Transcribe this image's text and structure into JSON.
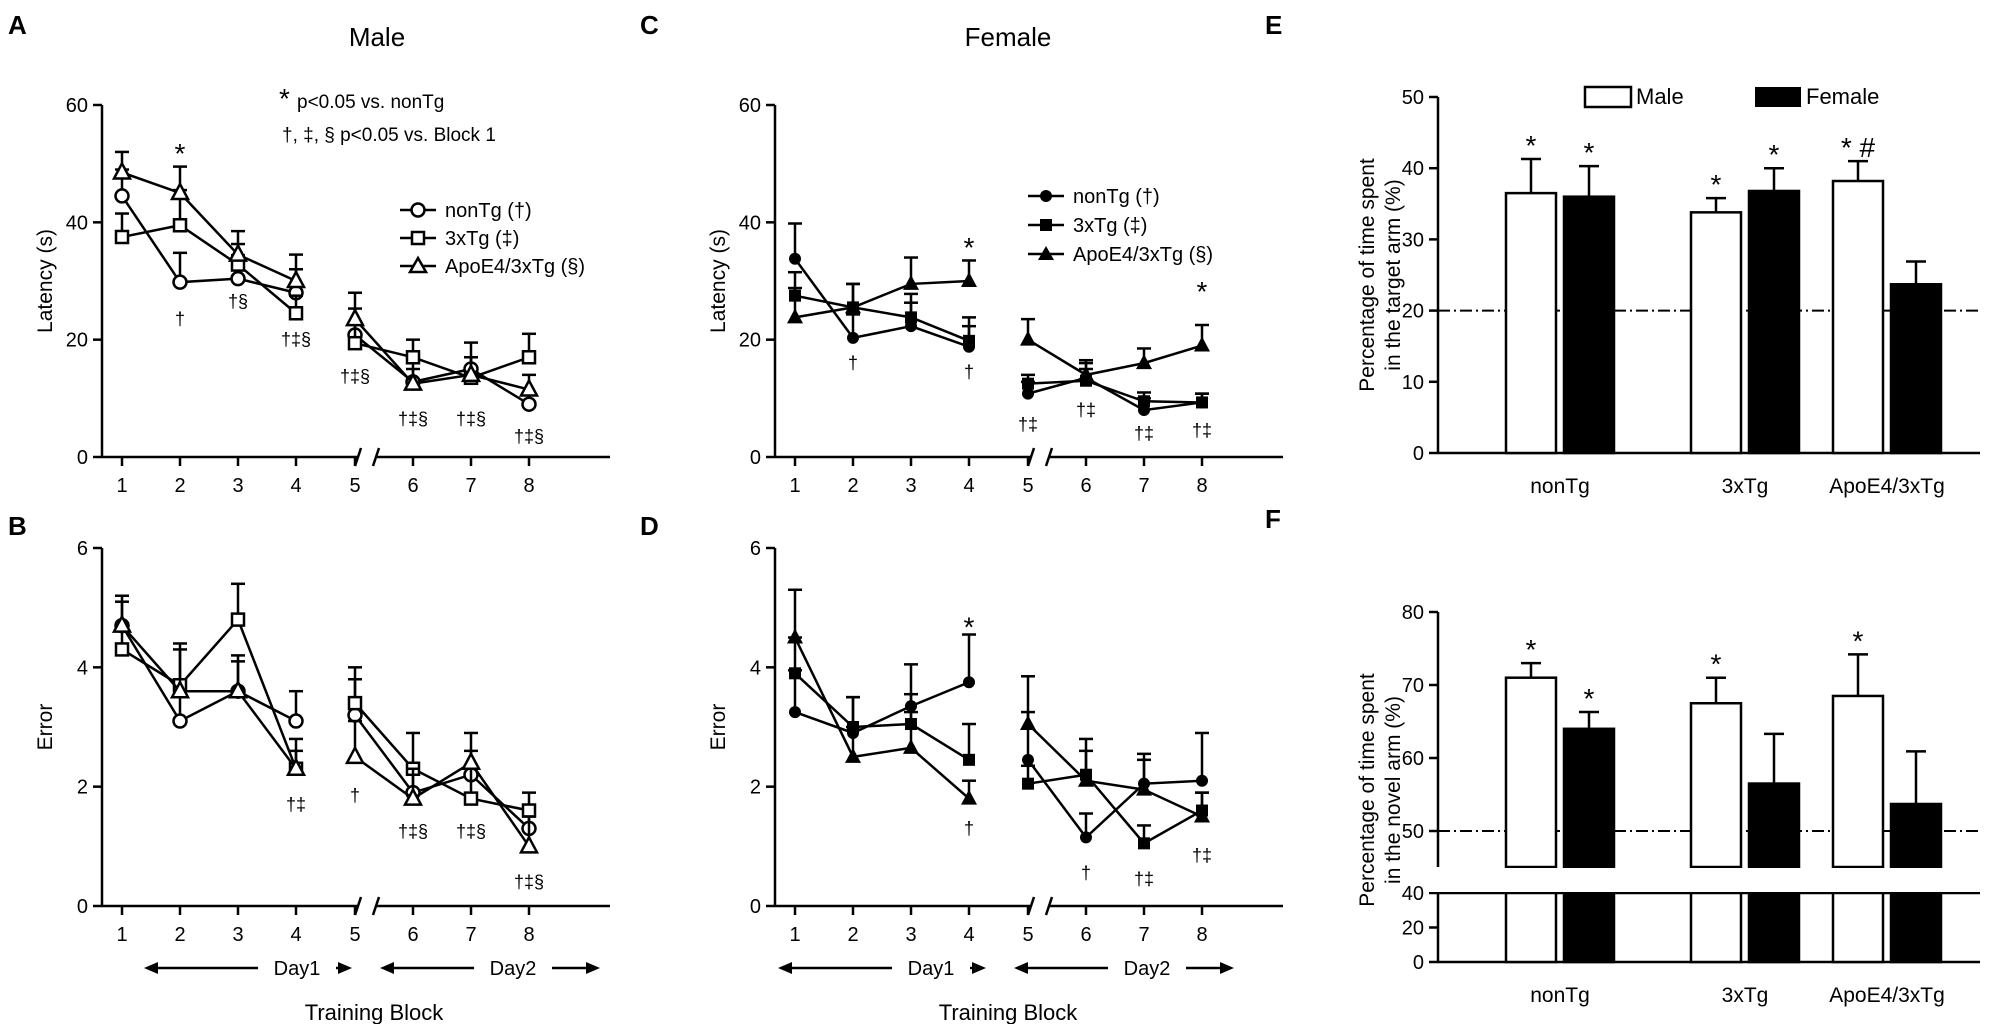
{
  "figure": {
    "x_label": "Training Block",
    "day1_label": "Day1",
    "day2_label": "Day2",
    "symbol_legend": [
      "nonTg (†)",
      "3xTg (‡)",
      "ApoE4/3xTg (§)"
    ],
    "significance_note": [
      "p<0.05 vs. nonTg",
      "†, ‡, § p<0.05 vs. Block 1"
    ]
  },
  "chart_data": [
    {
      "id": "A",
      "letter": "A",
      "title": "Male",
      "type": "line",
      "ylabel": "Latency (s)",
      "ylim": [
        0,
        60
      ],
      "yticks": [
        0,
        20,
        40,
        60
      ],
      "x": [
        1,
        2,
        3,
        4,
        5,
        6,
        7,
        8
      ],
      "break_after": 4,
      "filled": false,
      "series": [
        {
          "name": "nonTg (†)",
          "marker": "circle",
          "values": [
            44.5,
            29.8,
            30.4,
            28.0,
            20.8,
            12.8,
            15.0,
            9.0
          ],
          "errors": [
            4.5,
            5.0,
            4.0,
            4.0,
            4.5,
            3.5,
            4.5,
            2.0
          ]
        },
        {
          "name": "3xTg (‡)",
          "marker": "square",
          "values": [
            37.5,
            39.5,
            32.8,
            24.5,
            19.4,
            17.0,
            13.5,
            17.0
          ],
          "errors": [
            4.0,
            6.0,
            3.5,
            3.0,
            3.5,
            3.0,
            3.5,
            4.0
          ]
        },
        {
          "name": "ApoE4/3xTg (§)",
          "marker": "triangle",
          "values": [
            48.5,
            45.0,
            34.5,
            30.0,
            23.5,
            12.5,
            14.0,
            11.5
          ],
          "errors": [
            3.5,
            4.5,
            4.0,
            4.5,
            4.5,
            2.5,
            3.0,
            2.5
          ]
        }
      ],
      "annotations": [
        {
          "x": 2,
          "y": 52.5,
          "text": "*",
          "size": 28
        },
        {
          "x": 2,
          "y": 23.5,
          "text": "†",
          "size": 18
        },
        {
          "x": 3,
          "y": 26.5,
          "text": "†§",
          "size": 18
        },
        {
          "x": 4,
          "y": 20.0,
          "text": "†‡§",
          "size": 18
        },
        {
          "x": 5,
          "y": 13.7,
          "text": "†‡§",
          "size": 18
        },
        {
          "x": 6,
          "y": 6.5,
          "text": "†‡§",
          "size": 18
        },
        {
          "x": 7,
          "y": 6.5,
          "text": "†‡§",
          "size": 18
        },
        {
          "x": 8,
          "y": 3.5,
          "text": "†‡§",
          "size": 18
        }
      ]
    },
    {
      "id": "B",
      "letter": "B",
      "title": "",
      "type": "line",
      "ylabel": "Error",
      "ylim": [
        0,
        6
      ],
      "yticks": [
        0,
        2,
        4,
        6
      ],
      "x": [
        1,
        2,
        3,
        4,
        5,
        6,
        7,
        8
      ],
      "break_after": 4,
      "filled": false,
      "series": [
        {
          "name": "nonTg (†)",
          "marker": "circle",
          "values": [
            4.7,
            3.1,
            3.6,
            3.1,
            3.2,
            1.9,
            2.2,
            1.3
          ],
          "errors": [
            0.5,
            0.6,
            0.5,
            0.5,
            0.6,
            0.4,
            0.4,
            0.3
          ]
        },
        {
          "name": "3xTg (‡)",
          "marker": "square",
          "values": [
            4.3,
            3.7,
            4.8,
            2.3,
            3.4,
            2.3,
            1.8,
            1.6
          ],
          "errors": [
            0.4,
            0.7,
            0.6,
            0.3,
            0.6,
            0.6,
            0.5,
            0.3
          ]
        },
        {
          "name": "ApoE4/3xTg (§)",
          "marker": "triangle",
          "values": [
            4.7,
            3.6,
            3.6,
            2.3,
            2.5,
            1.8,
            2.4,
            1.0
          ],
          "errors": [
            0.4,
            0.7,
            0.6,
            0.5,
            0.6,
            0.5,
            0.5,
            0.5
          ]
        }
      ],
      "annotations": [
        {
          "x": 4,
          "y": 1.7,
          "text": "†‡",
          "size": 18
        },
        {
          "x": 5,
          "y": 1.85,
          "text": "†",
          "size": 18
        },
        {
          "x": 6,
          "y": 1.25,
          "text": "†‡§",
          "size": 18
        },
        {
          "x": 7,
          "y": 1.25,
          "text": "†‡§",
          "size": 18
        },
        {
          "x": 8,
          "y": 0.4,
          "text": "†‡§",
          "size": 18
        }
      ]
    },
    {
      "id": "C",
      "letter": "C",
      "title": "Female",
      "type": "line",
      "ylabel": "Latency (s)",
      "ylim": [
        0,
        60
      ],
      "yticks": [
        0,
        20,
        40,
        60
      ],
      "x": [
        1,
        2,
        3,
        4,
        5,
        6,
        7,
        8
      ],
      "break_after": 4,
      "filled": true,
      "series": [
        {
          "name": "nonTg (†)",
          "marker": "circle",
          "values": [
            33.8,
            20.3,
            22.3,
            18.8,
            10.8,
            13.5,
            8.0,
            9.3
          ],
          "errors": [
            6.0,
            4.0,
            4.0,
            3.5,
            2.0,
            2.5,
            2.0,
            1.5
          ]
        },
        {
          "name": "3xTg (‡)",
          "marker": "square",
          "values": [
            27.5,
            25.5,
            23.8,
            19.8,
            12.5,
            13.0,
            9.5,
            9.3
          ],
          "errors": [
            4.0,
            4.0,
            4.0,
            4.0,
            1.5,
            2.0,
            1.5,
            1.5
          ]
        },
        {
          "name": "ApoE4/3xTg (§)",
          "marker": "triangle",
          "values": [
            23.8,
            25.5,
            29.5,
            30.0,
            20.0,
            14.0,
            16.0,
            19.0
          ],
          "errors": [
            5.0,
            4.0,
            4.5,
            3.5,
            3.5,
            2.5,
            2.5,
            3.5
          ]
        }
      ],
      "annotations": [
        {
          "x": 4,
          "y": 36.5,
          "text": "*",
          "size": 28
        },
        {
          "x": 2,
          "y": 16.0,
          "text": "†",
          "size": 18
        },
        {
          "x": 4,
          "y": 14.5,
          "text": "†",
          "size": 18
        },
        {
          "x": 5,
          "y": 5.5,
          "text": "†‡",
          "size": 18
        },
        {
          "x": 6,
          "y": 8.0,
          "text": "†‡",
          "size": 18
        },
        {
          "x": 7,
          "y": 4.0,
          "text": "†‡",
          "size": 18
        },
        {
          "x": 8,
          "y": 4.5,
          "text": "†‡",
          "size": 18
        },
        {
          "x": 8,
          "y": 29.0,
          "text": "*",
          "size": 28
        }
      ]
    },
    {
      "id": "D",
      "letter": "D",
      "title": "",
      "type": "line",
      "ylabel": "Error",
      "ylim": [
        0,
        6
      ],
      "yticks": [
        0,
        2,
        4,
        6
      ],
      "x": [
        1,
        2,
        3,
        4,
        5,
        6,
        7,
        8
      ],
      "break_after": 4,
      "filled": true,
      "series": [
        {
          "name": "nonTg (†)",
          "marker": "circle",
          "values": [
            3.25,
            2.9,
            3.35,
            3.75,
            2.45,
            1.15,
            2.05,
            2.1
          ],
          "errors": [
            0.7,
            0.6,
            0.7,
            0.8,
            0.8,
            0.4,
            0.5,
            0.8
          ]
        },
        {
          "name": "3xTg (‡)",
          "marker": "square",
          "values": [
            3.9,
            3.0,
            3.05,
            2.45,
            2.05,
            2.2,
            1.05,
            1.6
          ],
          "errors": [
            0.6,
            0.5,
            0.5,
            0.6,
            0.3,
            0.6,
            0.3,
            0.3
          ]
        },
        {
          "name": "ApoE4/3xTg (§)",
          "marker": "triangle",
          "values": [
            4.5,
            2.5,
            2.65,
            1.8,
            3.05,
            2.1,
            1.95,
            1.5
          ],
          "errors": [
            0.8,
            0.5,
            0.6,
            0.3,
            0.8,
            0.5,
            0.5,
            0.4
          ]
        }
      ],
      "annotations": [
        {
          "x": 4,
          "y": 4.75,
          "text": "*",
          "size": 28
        },
        {
          "x": 4,
          "y": 1.3,
          "text": "†",
          "size": 18
        },
        {
          "x": 6,
          "y": 0.55,
          "text": "†",
          "size": 18
        },
        {
          "x": 7,
          "y": 0.45,
          "text": "†‡",
          "size": 18
        },
        {
          "x": 8,
          "y": 0.85,
          "text": "†‡",
          "size": 18
        }
      ]
    },
    {
      "id": "E",
      "letter": "E",
      "type": "bar",
      "ylabel": [
        "Percentage of time spent",
        "in the target arm (%)"
      ],
      "ylim": [
        0,
        50
      ],
      "yticks": [
        0,
        10,
        20,
        30,
        40,
        50
      ],
      "categories": [
        "nonTg",
        "3xTg",
        "ApoE4/3xTg"
      ],
      "chance_level": 20,
      "series": [
        {
          "name": "Male",
          "values": [
            36.5,
            33.8,
            38.2
          ],
          "errors": [
            4.8,
            2.0,
            2.8
          ]
        },
        {
          "name": "Female",
          "values": [
            36.0,
            36.8,
            23.7
          ],
          "errors": [
            4.3,
            3.2,
            3.2
          ]
        }
      ],
      "marks": [
        [
          "*",
          "*"
        ],
        [
          "*",
          "*"
        ],
        [
          "* #",
          ""
        ]
      ]
    },
    {
      "id": "F",
      "letter": "F",
      "type": "bar",
      "ylabel": [
        "Percentage of time spent",
        "in the novel arm (%)"
      ],
      "ylim": [
        0,
        80
      ],
      "yticks": [
        0,
        20,
        40,
        50,
        60,
        70,
        80
      ],
      "axis_break": [
        40,
        45
      ],
      "categories": [
        "nonTg",
        "3xTg",
        "ApoE4/3xTg"
      ],
      "chance_level": 50,
      "series": [
        {
          "name": "Male",
          "values": [
            71.0,
            67.5,
            68.5
          ],
          "errors": [
            2.0,
            3.5,
            5.7
          ]
        },
        {
          "name": "Female",
          "values": [
            64.0,
            56.5,
            53.7
          ],
          "errors": [
            2.3,
            6.8,
            7.2
          ]
        }
      ],
      "marks": [
        [
          "*",
          "*"
        ],
        [
          "*",
          ""
        ],
        [
          "*",
          ""
        ]
      ]
    }
  ]
}
